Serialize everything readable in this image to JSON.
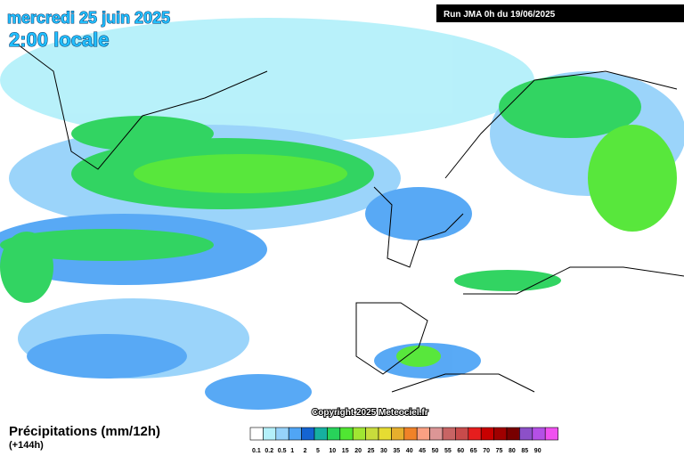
{
  "header": {
    "title": "mercredi 25 juin 2025",
    "subtitle": "2:00 locale",
    "run": "Run JMA 0h du 19/06/2025"
  },
  "map": {
    "copyright": "Copyright 2025 Meteociel.fr"
  },
  "footer": {
    "variable": "Précipitations (mm/12h)",
    "lead": "(+144h)"
  },
  "legend": {
    "items": [
      {
        "label": "0.1",
        "color": "#ffffff"
      },
      {
        "label": "0.2",
        "color": "#b4f0fa"
      },
      {
        "label": "0.5",
        "color": "#96d2fa"
      },
      {
        "label": "1",
        "color": "#50a5f5"
      },
      {
        "label": "2",
        "color": "#1464d2"
      },
      {
        "label": "5",
        "color": "#16b0a0"
      },
      {
        "label": "10",
        "color": "#28d25a"
      },
      {
        "label": "15",
        "color": "#50e632"
      },
      {
        "label": "20",
        "color": "#a0e632"
      },
      {
        "label": "25",
        "color": "#c8dc3c"
      },
      {
        "label": "30",
        "color": "#e6dc32"
      },
      {
        "label": "35",
        "color": "#e6af2d"
      },
      {
        "label": "40",
        "color": "#f08228"
      },
      {
        "label": "45",
        "color": "#faa082"
      },
      {
        "label": "50",
        "color": "#dc9696"
      },
      {
        "label": "55",
        "color": "#c86464"
      },
      {
        "label": "60",
        "color": "#c84b4b"
      },
      {
        "label": "65",
        "color": "#e61e1e"
      },
      {
        "label": "70",
        "color": "#c80000"
      },
      {
        "label": "75",
        "color": "#a00000"
      },
      {
        "label": "80",
        "color": "#780000"
      },
      {
        "label": "85",
        "color": "#8c50c8"
      },
      {
        "label": "90",
        "color": "#b450e6"
      },
      {
        "label": "",
        "color": "#f050f0"
      }
    ]
  }
}
